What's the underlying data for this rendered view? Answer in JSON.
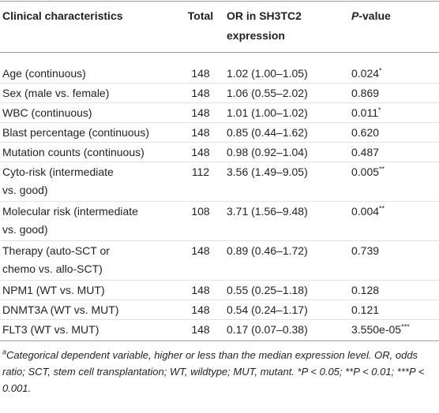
{
  "table": {
    "header": {
      "characteristic": "Clinical characteristics",
      "total": "Total",
      "or": [
        "OR in SH3TC2",
        "expression"
      ],
      "p_italic": "P",
      "p_rest": "-value"
    },
    "rows": [
      {
        "characteristic": [
          "Age (continuous)"
        ],
        "total": "148",
        "or": "1.02 (1.00–1.05)",
        "p": "0.024",
        "mark": "*"
      },
      {
        "characteristic": [
          "Sex (male vs. female)"
        ],
        "total": "148",
        "or": "1.06 (0.55–2.02)",
        "p": "0.869"
      },
      {
        "characteristic": [
          "WBC (continuous)"
        ],
        "total": "148",
        "or": "1.01 (1.00–1.02)",
        "p": "0.011",
        "mark": "*"
      },
      {
        "characteristic": [
          "Blast percentage (continuous)"
        ],
        "total": "148",
        "or": "0.85 (0.44–1.62)",
        "p": "0.620"
      },
      {
        "characteristic": [
          "Mutation counts (continuous)"
        ],
        "total": "148",
        "or": "0.98 (0.92–1.04)",
        "p": "0.487"
      },
      {
        "characteristic": [
          "Cyto-risk (intermediate",
          "vs. good)"
        ],
        "total": "112",
        "or": "3.56 (1.49–9.05)",
        "p": "0.005",
        "mark": "**"
      },
      {
        "characteristic": [
          "Molecular risk (intermediate",
          "vs. good)"
        ],
        "total": "108",
        "or": "3.71 (1.56–9.48)",
        "p": "0.004",
        "mark": "**"
      },
      {
        "characteristic": [
          "Therapy (auto-SCT or",
          "chemo vs. allo-SCT)"
        ],
        "total": "148",
        "or": "0.89 (0.46–1.72)",
        "p": "0.739"
      },
      {
        "characteristic": [
          "NPM1 (WT vs. MUT)"
        ],
        "total": "148",
        "or": "0.55 (0.25–1.18)",
        "p": "0.128"
      },
      {
        "characteristic": [
          "DNMT3A (WT vs. MUT)"
        ],
        "total": "148",
        "or": "0.54 (0.24–1.17)",
        "p": "0.121"
      },
      {
        "characteristic": [
          "FLT3 (WT vs. MUT)"
        ],
        "total": "148",
        "or": "0.17 (0.07–0.38)",
        "p": "3.550e-05",
        "mark": "***"
      }
    ],
    "footnote": {
      "marker": "a",
      "text": "Categorical dependent variable, higher or less than the median expression level. OR, odds ratio; SCT, stem cell transplantation; WT, wildtype; MUT, mutant. *P < 0.05; **P < 0.01; ***P < 0.001."
    }
  }
}
